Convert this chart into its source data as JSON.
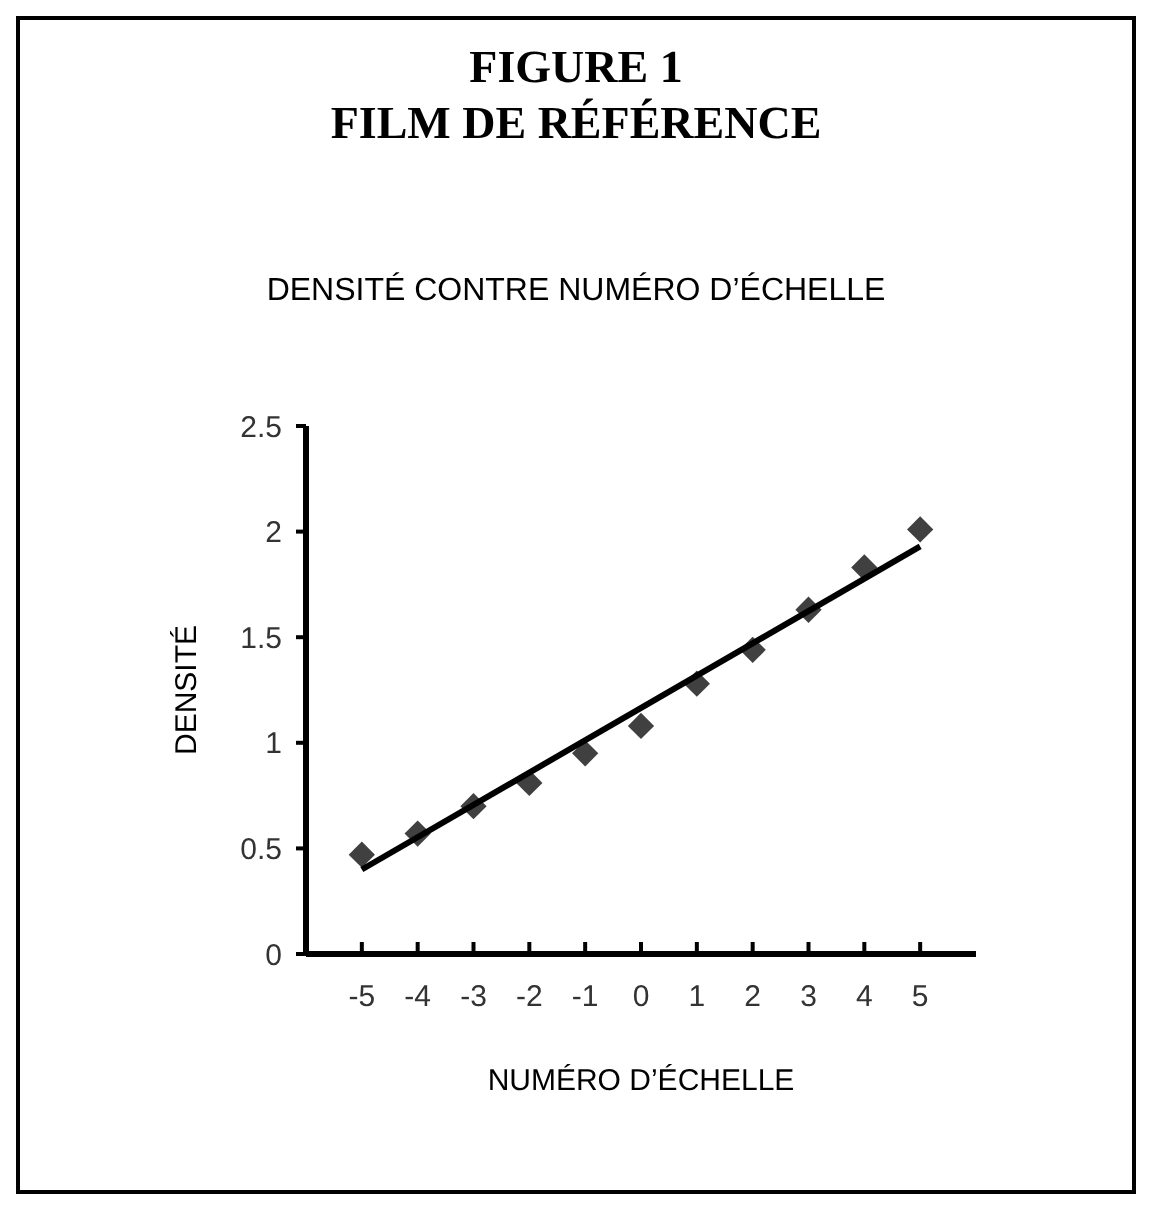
{
  "chart_data": {
    "type": "scatter",
    "title": "FIGURE 1\nFILM DE RÉFÉRENCE",
    "subtitle": "DENSITÉ CONTRE NUMÉRO D’ÉCHELLE",
    "xlabel": "NUMÉRO  D’ÉCHELLE",
    "ylabel": "DENSITÉ",
    "xlim": [
      -6,
      6
    ],
    "xticks": [
      -5,
      -4,
      -3,
      -2,
      -1,
      0,
      1,
      2,
      3,
      4,
      5
    ],
    "ylim": [
      0,
      2.5
    ],
    "yticks": [
      0,
      0.5,
      1,
      1.5,
      2,
      2.5
    ],
    "grid": false,
    "series": [
      {
        "marker": "diamond",
        "color": "#404040",
        "x": [
          -5,
          -4,
          -3,
          -2,
          -1,
          0,
          1,
          2,
          3,
          4,
          5
        ],
        "values": [
          0.47,
          0.57,
          0.7,
          0.81,
          0.95,
          1.08,
          1.28,
          1.44,
          1.63,
          1.83,
          2.01
        ]
      },
      {
        "type": "line",
        "color": "#000000",
        "x": [
          -5,
          5
        ],
        "values": [
          0.4,
          1.93
        ],
        "line_style": "solid"
      }
    ]
  }
}
